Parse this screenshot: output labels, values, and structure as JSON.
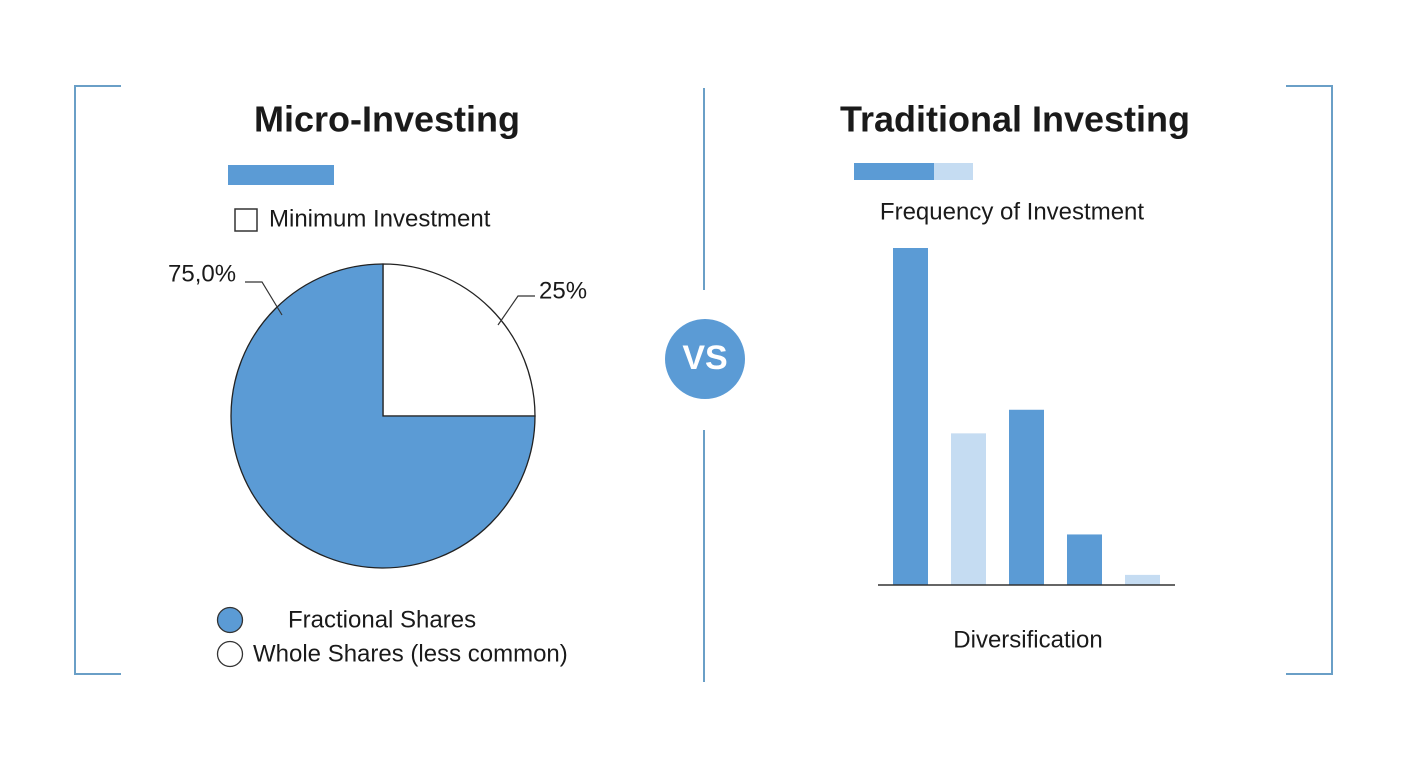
{
  "chart_data": [
    {
      "type": "pie",
      "title": "Micro-Investing",
      "subtitle": "Minimum Investment",
      "categories": [
        "Fractional Shares",
        "Whole Shares (less common)"
      ],
      "values": [
        75,
        25
      ],
      "value_labels": [
        "75,0%",
        "25%"
      ],
      "colors": [
        "#5b9bd5",
        "#ffffff"
      ]
    },
    {
      "type": "bar",
      "title": "Traditional Investing",
      "subtitle": "Frequency of Investment",
      "x_label": "Diversification",
      "categories": [
        null,
        null,
        null,
        null,
        null
      ],
      "values": [
        100,
        45,
        52,
        15,
        3
      ],
      "colors": [
        "#5b9bd5",
        "#c5dcf2",
        "#5b9bd5",
        "#5b9bd5",
        "#c5dcf2"
      ],
      "ylim": [
        0,
        100
      ]
    }
  ],
  "divider": {
    "label": "VS"
  }
}
